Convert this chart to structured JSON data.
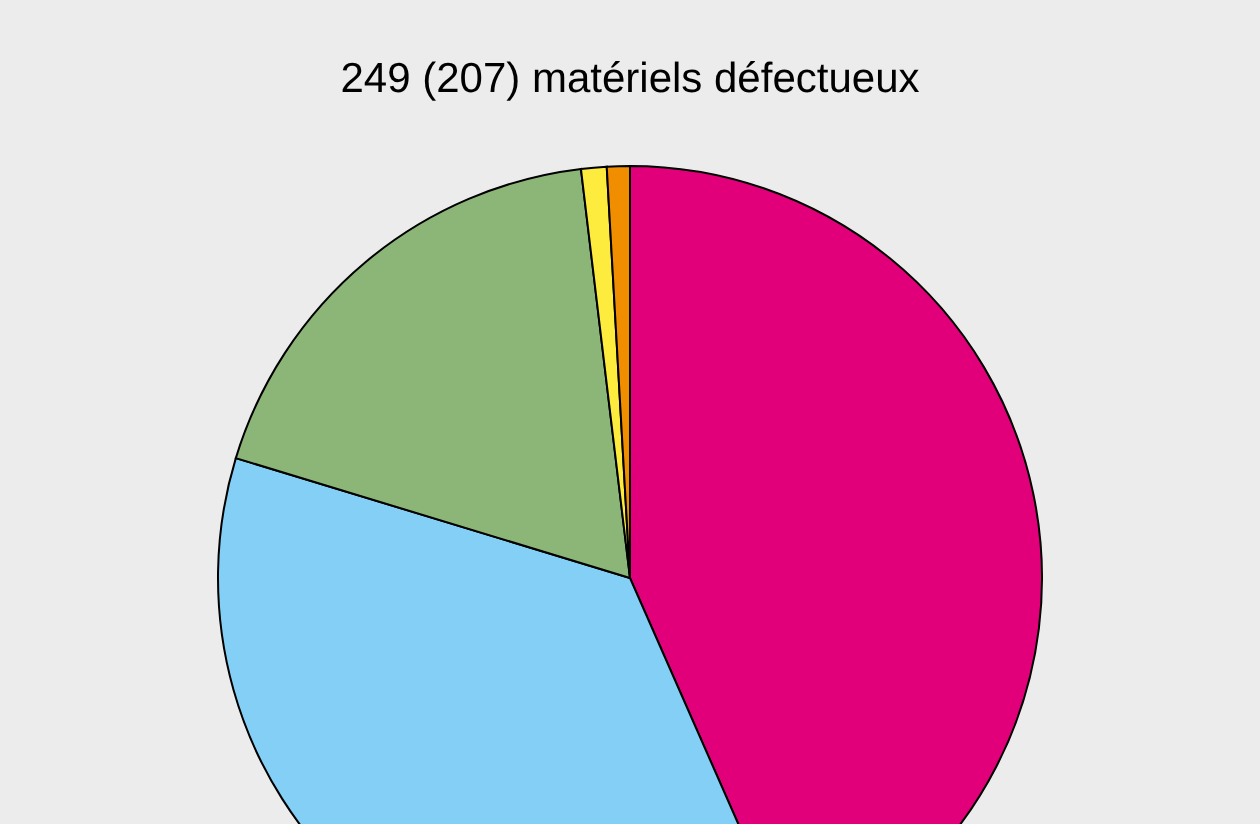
{
  "chart_data": {
    "type": "pie",
    "title": "249 (207) matériels défectueux",
    "categories": [
      null,
      null,
      null,
      null,
      null
    ],
    "values": [
      43.4,
      36.3,
      18.4,
      1.0,
      0.9
    ],
    "colors": [
      "#e2007a",
      "#84cff5",
      "#8bb677",
      "#fdeb3e",
      "#f18e00"
    ]
  }
}
